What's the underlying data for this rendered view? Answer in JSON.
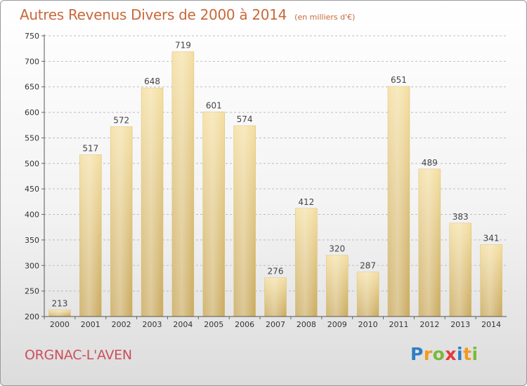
{
  "chart_data": {
    "type": "bar",
    "title": "Autres Revenus Divers de 2000 à 2014",
    "unit": "(en milliers d'€)",
    "categories": [
      "2000",
      "2001",
      "2002",
      "2003",
      "2004",
      "2005",
      "2006",
      "2007",
      "2008",
      "2009",
      "2010",
      "2011",
      "2012",
      "2013",
      "2014"
    ],
    "values": [
      213,
      517,
      572,
      648,
      719,
      601,
      574,
      276,
      412,
      320,
      287,
      651,
      489,
      383,
      341
    ],
    "ylim": [
      200,
      750
    ],
    "yticks": [
      200,
      250,
      300,
      350,
      400,
      450,
      500,
      550,
      600,
      650,
      700,
      750
    ],
    "grid": "horizontal dashed",
    "bar_color": "#e9cf86"
  },
  "commune": "ORGNAC-L'AVEN",
  "logo": {
    "text": "Proxiti",
    "letters": [
      "P",
      "r",
      "o",
      "x",
      "i",
      "t",
      "i"
    ],
    "colors": [
      "#2f7fc4",
      "#f39a1e",
      "#7ab93b",
      "#e23a3a",
      "#2f7fc4",
      "#f39a1e",
      "#7ab93b"
    ]
  }
}
